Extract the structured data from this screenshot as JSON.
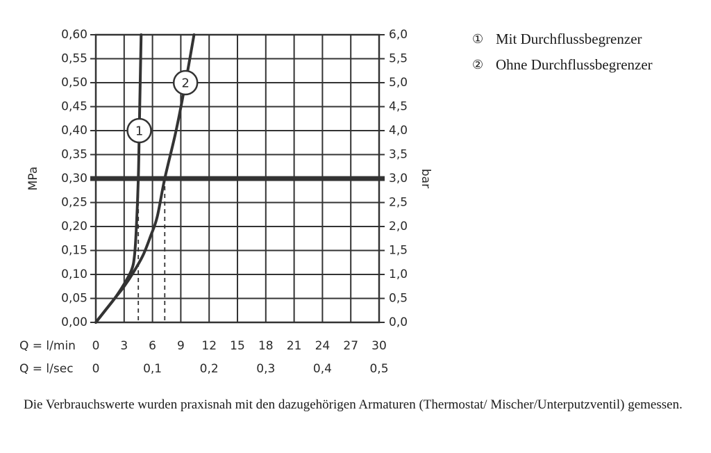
{
  "chart_data": {
    "type": "line",
    "ylabel_left": "MPa",
    "ylabel_right": "bar",
    "ylim": [
      0,
      0.6
    ],
    "xlim": [
      0,
      30
    ],
    "y_ticks_left": [
      "0,00",
      "0,05",
      "0,10",
      "0,15",
      "0,20",
      "0,25",
      "0,30",
      "0,35",
      "0,40",
      "0,45",
      "0,50",
      "0,55",
      "0,60"
    ],
    "y_ticks_right": [
      "0,0",
      "0,5",
      "1,0",
      "1,5",
      "2,0",
      "2,5",
      "3,0",
      "3,5",
      "4,0",
      "4,5",
      "5,0",
      "5,5",
      "6,0"
    ],
    "x_row1_label": "Q = l/min",
    "x_row1_ticks": [
      "0",
      "3",
      "6",
      "9",
      "12",
      "15",
      "18",
      "21",
      "24",
      "27",
      "30"
    ],
    "x_row2_label": "Q = l/sec",
    "x_row2_ticks": [
      {
        "label": "0",
        "at": 0
      },
      {
        "label": "0,1",
        "at": 6
      },
      {
        "label": "0,2",
        "at": 12
      },
      {
        "label": "0,3",
        "at": 18
      },
      {
        "label": "0,4",
        "at": 24
      },
      {
        "label": "0,5",
        "at": 30
      }
    ],
    "grid": true,
    "reference_line": {
      "y": 0.3
    },
    "series": [
      {
        "name": "1",
        "points": [
          [
            0,
            0
          ],
          [
            1,
            0.025
          ],
          [
            2,
            0.05
          ],
          [
            3,
            0.08
          ],
          [
            3.8,
            0.11
          ],
          [
            4.1,
            0.14
          ],
          [
            4.3,
            0.2
          ],
          [
            4.5,
            0.3
          ],
          [
            4.6,
            0.4
          ],
          [
            4.7,
            0.5
          ],
          [
            4.8,
            0.6
          ]
        ],
        "marker": {
          "label": "1",
          "x": 4.6,
          "y": 0.4
        },
        "drop_x": 4.5
      },
      {
        "name": "2",
        "points": [
          [
            0,
            0
          ],
          [
            1,
            0.025
          ],
          [
            2,
            0.05
          ],
          [
            3,
            0.075
          ],
          [
            4,
            0.105
          ],
          [
            5,
            0.14
          ],
          [
            5.8,
            0.18
          ],
          [
            6.5,
            0.22
          ],
          [
            7.3,
            0.3
          ],
          [
            8.5,
            0.4
          ],
          [
            9.5,
            0.5
          ],
          [
            10.4,
            0.6
          ]
        ],
        "marker": {
          "label": "2",
          "x": 9.5,
          "y": 0.5
        },
        "drop_x": 7.3
      }
    ]
  },
  "legend": {
    "items": [
      {
        "num": "①",
        "label": "Mit Durchflussbegrenzer"
      },
      {
        "num": "②",
        "label": "Ohne Durchflussbegrenzer"
      }
    ]
  },
  "caption": "Die Verbrauchswerte wurden praxisnah mit den dazugehörigen Armaturen (Thermostat/ Mischer/Unterputzventil) gemessen."
}
